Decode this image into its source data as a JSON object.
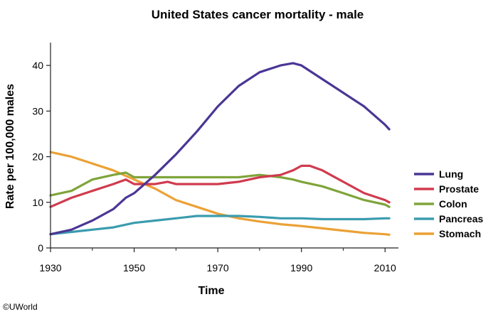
{
  "chart_data": {
    "type": "line",
    "title": "United States cancer mortality - male",
    "xlabel": "Time",
    "ylabel": "Rate per 100,000 males",
    "xlim": [
      1930,
      2012
    ],
    "ylim": [
      0,
      45
    ],
    "xticks": [
      1930,
      1950,
      1970,
      1990,
      2010
    ],
    "yticks": [
      0,
      10,
      20,
      30,
      40
    ],
    "grid": false,
    "legend_position": "right",
    "series": [
      {
        "name": "Lung",
        "color": "#4b3695",
        "points": [
          [
            1930,
            3
          ],
          [
            1935,
            4
          ],
          [
            1940,
            6
          ],
          [
            1945,
            8.5
          ],
          [
            1948,
            11
          ],
          [
            1950,
            12
          ],
          [
            1955,
            16
          ],
          [
            1960,
            20.5
          ],
          [
            1965,
            25.5
          ],
          [
            1970,
            31
          ],
          [
            1975,
            35.5
          ],
          [
            1980,
            38.5
          ],
          [
            1985,
            40
          ],
          [
            1988,
            40.5
          ],
          [
            1990,
            40
          ],
          [
            1995,
            37
          ],
          [
            2000,
            34
          ],
          [
            2005,
            31
          ],
          [
            2010,
            27
          ],
          [
            2011,
            26
          ]
        ]
      },
      {
        "name": "Prostate",
        "color": "#d03b4e",
        "points": [
          [
            1930,
            9
          ],
          [
            1935,
            11
          ],
          [
            1940,
            12.5
          ],
          [
            1945,
            14
          ],
          [
            1948,
            15
          ],
          [
            1950,
            14
          ],
          [
            1955,
            14
          ],
          [
            1958,
            14.5
          ],
          [
            1960,
            14
          ],
          [
            1970,
            14
          ],
          [
            1975,
            14.5
          ],
          [
            1980,
            15.5
          ],
          [
            1985,
            16
          ],
          [
            1988,
            17
          ],
          [
            1990,
            18
          ],
          [
            1992,
            18
          ],
          [
            1995,
            17
          ],
          [
            2000,
            14.5
          ],
          [
            2005,
            12
          ],
          [
            2010,
            10.5
          ],
          [
            2011,
            10
          ]
        ]
      },
      {
        "name": "Colon",
        "color": "#7fa43a",
        "points": [
          [
            1930,
            11.5
          ],
          [
            1935,
            12.5
          ],
          [
            1940,
            15
          ],
          [
            1945,
            16
          ],
          [
            1948,
            16.5
          ],
          [
            1950,
            15.5
          ],
          [
            1955,
            15.5
          ],
          [
            1960,
            15.5
          ],
          [
            1965,
            15.5
          ],
          [
            1970,
            15.5
          ],
          [
            1975,
            15.5
          ],
          [
            1980,
            16
          ],
          [
            1985,
            15.5
          ],
          [
            1988,
            15
          ],
          [
            1990,
            14.5
          ],
          [
            1995,
            13.5
          ],
          [
            2000,
            12
          ],
          [
            2005,
            10.5
          ],
          [
            2010,
            9.5
          ],
          [
            2011,
            9
          ]
        ]
      },
      {
        "name": "Pancreas",
        "color": "#3a9cae",
        "points": [
          [
            1930,
            3
          ],
          [
            1935,
            3.5
          ],
          [
            1940,
            4
          ],
          [
            1945,
            4.5
          ],
          [
            1950,
            5.5
          ],
          [
            1955,
            6
          ],
          [
            1960,
            6.5
          ],
          [
            1965,
            7
          ],
          [
            1970,
            7
          ],
          [
            1975,
            7
          ],
          [
            1980,
            6.8
          ],
          [
            1985,
            6.5
          ],
          [
            1990,
            6.5
          ],
          [
            1995,
            6.3
          ],
          [
            2000,
            6.3
          ],
          [
            2005,
            6.3
          ],
          [
            2010,
            6.5
          ],
          [
            2011,
            6.5
          ]
        ]
      },
      {
        "name": "Stomach",
        "color": "#eba135",
        "points": [
          [
            1930,
            21
          ],
          [
            1935,
            20
          ],
          [
            1940,
            18.5
          ],
          [
            1945,
            17
          ],
          [
            1950,
            15
          ],
          [
            1955,
            13
          ],
          [
            1960,
            10.5
          ],
          [
            1965,
            9
          ],
          [
            1970,
            7.5
          ],
          [
            1975,
            6.5
          ],
          [
            1980,
            5.8
          ],
          [
            1985,
            5.2
          ],
          [
            1990,
            4.8
          ],
          [
            1995,
            4.3
          ],
          [
            2000,
            3.8
          ],
          [
            2005,
            3.3
          ],
          [
            2010,
            3
          ],
          [
            2011,
            2.9
          ]
        ]
      }
    ]
  },
  "credit": "©UWorld"
}
